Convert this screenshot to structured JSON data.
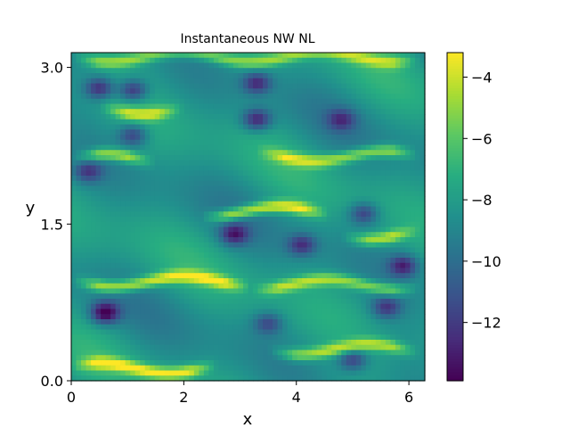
{
  "chart_data": {
    "type": "heatmap",
    "title": "Instantaneous NW NL",
    "xlabel": "x",
    "ylabel": "y",
    "xlim": [
      0,
      6.2832
    ],
    "ylim": [
      0,
      3.1416
    ],
    "x_ticks": [
      {
        "value": 0,
        "label": "0"
      },
      {
        "value": 2,
        "label": "2"
      },
      {
        "value": 4,
        "label": "4"
      },
      {
        "value": 6,
        "label": "6"
      }
    ],
    "y_ticks": [
      {
        "value": 0.0,
        "label": "0.0"
      },
      {
        "value": 1.5,
        "label": "1.5"
      },
      {
        "value": 3.0,
        "label": "3.0"
      }
    ],
    "colorbar": {
      "colormap": "viridis",
      "range": [
        -13.9,
        -3.2
      ],
      "ticks": [
        {
          "value": -4,
          "label": "−4"
        },
        {
          "value": -6,
          "label": "−6"
        },
        {
          "value": -8,
          "label": "−8"
        },
        {
          "value": -10,
          "label": "−10"
        },
        {
          "value": -12,
          "label": "−12"
        }
      ]
    },
    "field_description": "log-scale field with horizontal streaky structures; bright yellow streaks near y=0.1, 0.9, 1.6, 2.1, 2.6; dark purple patches near (0.6,0.65), (0.4,2.8), (3.3,2.85), (2.8,1.4)",
    "bright_streaks": [
      {
        "y": 0.12,
        "x_from": 0.0,
        "x_to": 2.6,
        "value": -3.6
      },
      {
        "y": 0.95,
        "x_from": 0.0,
        "x_to": 3.2,
        "value": -3.8
      },
      {
        "y": 0.92,
        "x_from": 3.2,
        "x_to": 6.2,
        "value": -4.6
      },
      {
        "y": 1.62,
        "x_from": 2.3,
        "x_to": 4.6,
        "value": -3.5
      },
      {
        "y": 1.4,
        "x_from": 4.8,
        "x_to": 6.2,
        "value": -4.2
      },
      {
        "y": 2.12,
        "x_from": 0.0,
        "x_to": 1.5,
        "value": -4.0
      },
      {
        "y": 2.15,
        "x_from": 3.3,
        "x_to": 6.2,
        "value": -4.5
      },
      {
        "y": 2.6,
        "x_from": 0.5,
        "x_to": 2.0,
        "value": -4.5
      },
      {
        "y": 0.3,
        "x_from": 3.5,
        "x_to": 6.2,
        "value": -4.5
      },
      {
        "y": 3.1,
        "x_from": 0.0,
        "x_to": 6.2,
        "value": -5.0
      }
    ],
    "dark_spots": [
      {
        "x": 0.6,
        "y": 0.65,
        "value": -13.9
      },
      {
        "x": 0.5,
        "y": 2.8,
        "value": -12.5
      },
      {
        "x": 1.1,
        "y": 2.78,
        "value": -12.5
      },
      {
        "x": 3.3,
        "y": 2.85,
        "value": -12.3
      },
      {
        "x": 3.3,
        "y": 2.5,
        "value": -12.8
      },
      {
        "x": 2.9,
        "y": 1.4,
        "value": -12.5
      },
      {
        "x": 4.1,
        "y": 1.3,
        "value": -12.0
      },
      {
        "x": 5.9,
        "y": 1.1,
        "value": -12.5
      },
      {
        "x": 5.0,
        "y": 0.2,
        "value": -12.0
      },
      {
        "x": 5.6,
        "y": 0.7,
        "value": -11.8
      },
      {
        "x": 4.8,
        "y": 2.5,
        "value": -11.5
      },
      {
        "x": 5.2,
        "y": 1.6,
        "value": -11.8
      },
      {
        "x": 1.1,
        "y": 2.35,
        "value": -11.8
      },
      {
        "x": 0.3,
        "y": 2.0,
        "value": -11.5
      },
      {
        "x": 3.5,
        "y": 0.55,
        "value": -11.3
      }
    ],
    "background_value": -8.3
  }
}
